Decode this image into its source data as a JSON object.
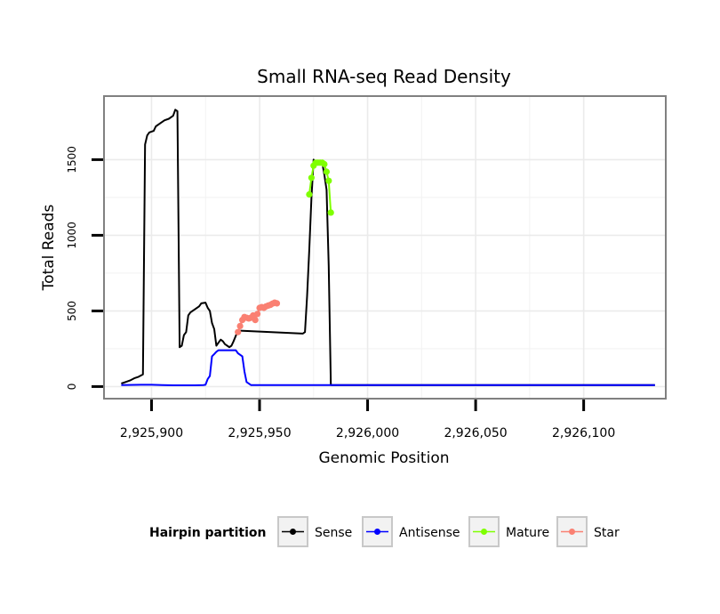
{
  "chart_data": {
    "type": "line",
    "title": "Small RNA-seq Read Density",
    "xlabel": "Genomic Position",
    "ylabel": "Total Reads",
    "xlim": [
      2925878,
      2926138
    ],
    "ylim": [
      -80,
      1920
    ],
    "x_ticks": [
      2925900,
      2925950,
      2926000,
      2926050,
      2926100
    ],
    "x_tick_labels": [
      "2,925,900",
      "2,925,950",
      "2,926,000",
      "2,926,050",
      "2,926,100"
    ],
    "y_ticks": [
      0,
      500,
      1000,
      1500
    ],
    "y_tick_labels": [
      "0",
      "500",
      "1000",
      "1500"
    ],
    "grid": true,
    "legend": {
      "title": "Hairpin partition",
      "position": "bottom",
      "entries": [
        "Sense",
        "Antisense",
        "Mature",
        "Star"
      ]
    },
    "series": [
      {
        "name": "Sense",
        "color": "#000000",
        "markers": false,
        "points": [
          [
            2925886,
            20
          ],
          [
            2925888,
            30
          ],
          [
            2925890,
            40
          ],
          [
            2925892,
            55
          ],
          [
            2925894,
            65
          ],
          [
            2925896,
            80
          ],
          [
            2925897,
            1600
          ],
          [
            2925898,
            1660
          ],
          [
            2925899,
            1680
          ],
          [
            2925901,
            1690
          ],
          [
            2925902,
            1720
          ],
          [
            2925904,
            1740
          ],
          [
            2925906,
            1760
          ],
          [
            2925908,
            1770
          ],
          [
            2925910,
            1790
          ],
          [
            2925911,
            1830
          ],
          [
            2925912,
            1820
          ],
          [
            2925913,
            260
          ],
          [
            2925914,
            270
          ],
          [
            2925915,
            340
          ],
          [
            2925916,
            360
          ],
          [
            2925917,
            470
          ],
          [
            2925918,
            490
          ],
          [
            2925920,
            510
          ],
          [
            2925922,
            530
          ],
          [
            2925923,
            550
          ],
          [
            2925925,
            555
          ],
          [
            2925926,
            520
          ],
          [
            2925927,
            500
          ],
          [
            2925928,
            420
          ],
          [
            2925929,
            380
          ],
          [
            2925930,
            270
          ],
          [
            2925931,
            290
          ],
          [
            2925932,
            310
          ],
          [
            2925933,
            300
          ],
          [
            2925934,
            280
          ],
          [
            2925935,
            270
          ],
          [
            2925936,
            260
          ],
          [
            2925937,
            270
          ],
          [
            2925938,
            300
          ],
          [
            2925940,
            370
          ],
          [
            2925970,
            350
          ],
          [
            2925971,
            360
          ],
          [
            2925972,
            600
          ],
          [
            2925973,
            900
          ],
          [
            2925974,
            1250
          ],
          [
            2925975,
            1500
          ],
          [
            2925976,
            1480
          ],
          [
            2925977,
            1480
          ],
          [
            2925978,
            1480
          ],
          [
            2925979,
            1480
          ],
          [
            2925980,
            1400
          ],
          [
            2925981,
            1300
          ],
          [
            2925982,
            800
          ],
          [
            2925983,
            10
          ],
          [
            2926133,
            10
          ]
        ]
      },
      {
        "name": "Antisense",
        "color": "#0000ff",
        "markers": false,
        "points": [
          [
            2925886,
            10
          ],
          [
            2925895,
            12
          ],
          [
            2925900,
            12
          ],
          [
            2925905,
            10
          ],
          [
            2925910,
            8
          ],
          [
            2925915,
            8
          ],
          [
            2925920,
            8
          ],
          [
            2925924,
            10
          ],
          [
            2925925,
            12
          ],
          [
            2925926,
            50
          ],
          [
            2925927,
            70
          ],
          [
            2925928,
            200
          ],
          [
            2925929,
            215
          ],
          [
            2925930,
            230
          ],
          [
            2925931,
            240
          ],
          [
            2925935,
            240
          ],
          [
            2925939,
            240
          ],
          [
            2925940,
            220
          ],
          [
            2925942,
            200
          ],
          [
            2925943,
            100
          ],
          [
            2925944,
            30
          ],
          [
            2925946,
            10
          ],
          [
            2925985,
            10
          ],
          [
            2926120,
            10
          ],
          [
            2926133,
            10
          ]
        ]
      },
      {
        "name": "Mature",
        "color": "#7fff00",
        "markers": true,
        "points": [
          [
            2925973,
            1270
          ],
          [
            2925974,
            1380
          ],
          [
            2925975,
            1460
          ],
          [
            2925976,
            1480
          ],
          [
            2925977,
            1480
          ],
          [
            2925978,
            1480
          ],
          [
            2925979,
            1480
          ],
          [
            2925980,
            1470
          ],
          [
            2925981,
            1420
          ],
          [
            2925982,
            1360
          ],
          [
            2925983,
            1150
          ]
        ]
      },
      {
        "name": "Star",
        "color": "#fa8072",
        "markers": true,
        "points": [
          [
            2925940,
            360
          ],
          [
            2925941,
            400
          ],
          [
            2925942,
            440
          ],
          [
            2925943,
            460
          ],
          [
            2925944,
            455
          ],
          [
            2925945,
            450
          ],
          [
            2925946,
            455
          ],
          [
            2925947,
            470
          ],
          [
            2925948,
            440
          ],
          [
            2925949,
            480
          ],
          [
            2925950,
            520
          ],
          [
            2925951,
            525
          ],
          [
            2925952,
            520
          ],
          [
            2925953,
            530
          ],
          [
            2925954,
            535
          ],
          [
            2925955,
            540
          ],
          [
            2925956,
            548
          ],
          [
            2925957,
            555
          ],
          [
            2925958,
            550
          ]
        ]
      }
    ]
  }
}
